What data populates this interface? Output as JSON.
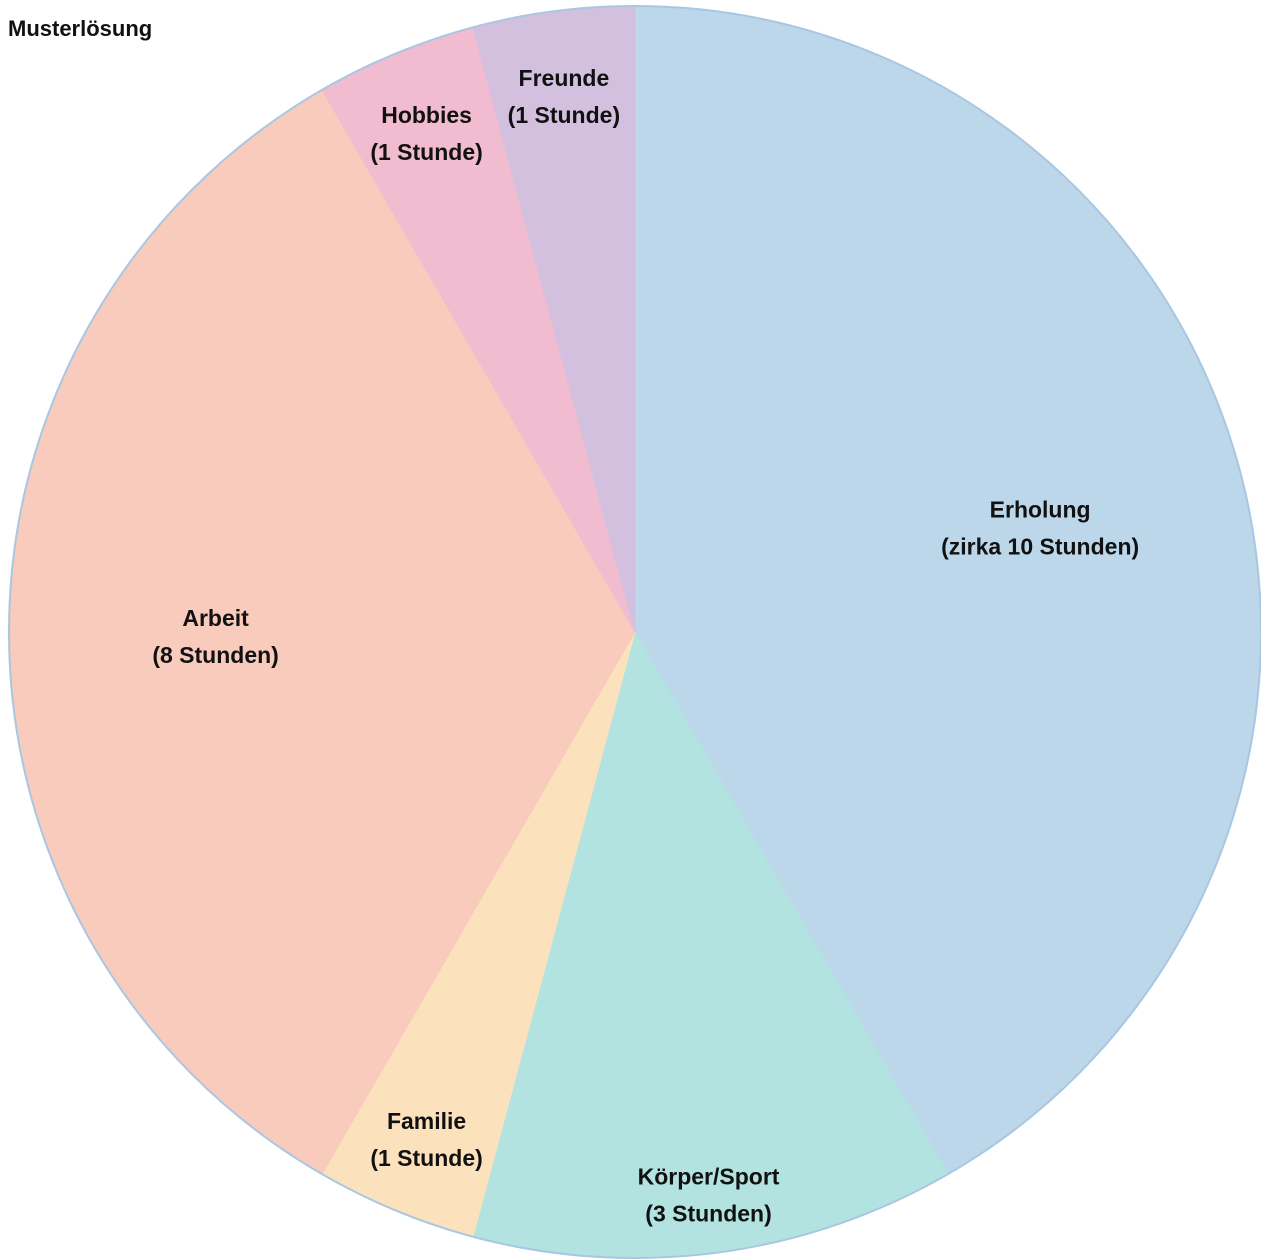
{
  "page_title": "Musterlösung",
  "chart_data": {
    "type": "pie",
    "title": "",
    "start_angle_deg": 0,
    "direction": "clockwise",
    "outline_color": "#a9c7e3",
    "slices": [
      {
        "label": "Erholung",
        "value_label": "(zirka 10 Stunden)",
        "value": 10,
        "color": "#bcd6ea"
      },
      {
        "label": "Körper/Sport",
        "value_label": "(3 Stunden)",
        "value": 3,
        "color": "#b3e3e0"
      },
      {
        "label": "Familie",
        "value_label": "(1 Stunde)",
        "value": 1,
        "color": "#fbe2bd"
      },
      {
        "label": "Arbeit",
        "value_label": "(8 Stunden)",
        "value": 8,
        "color": "#f8cbbd"
      },
      {
        "label": "Hobbies",
        "value_label": "(1 Stunde)",
        "value": 1,
        "color": "#f1bccf"
      },
      {
        "label": "Freunde",
        "value_label": "(1 Stunde)",
        "value": 1,
        "color": "#d2c0de"
      }
    ]
  }
}
